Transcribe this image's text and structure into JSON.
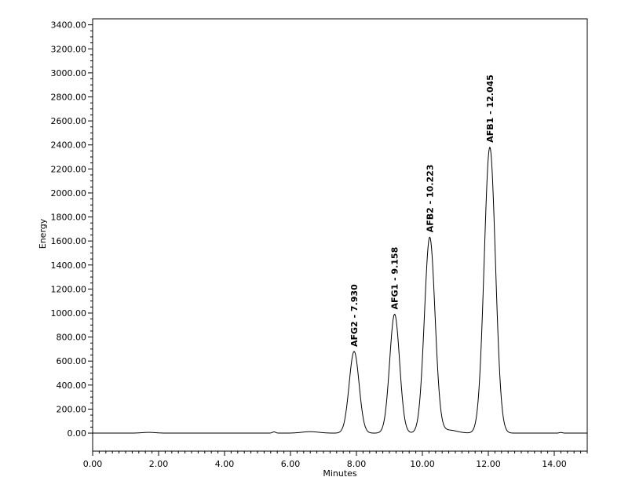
{
  "chart_data": {
    "type": "line",
    "title": "",
    "xlabel": "Minutes",
    "ylabel": "Energy",
    "xlim": [
      0,
      15
    ],
    "ylim": [
      -150,
      3450
    ],
    "x_ticks": [
      0,
      2,
      4,
      6,
      8,
      10,
      12,
      14
    ],
    "x_tick_labels": [
      "0.00",
      "2.00",
      "4.00",
      "6.00",
      "8.00",
      "10.00",
      "12.00",
      "14.00"
    ],
    "y_ticks": [
      0,
      200,
      400,
      600,
      800,
      1000,
      1200,
      1400,
      1600,
      1800,
      2000,
      2200,
      2400,
      2600,
      2800,
      3000,
      3200,
      3400
    ],
    "y_tick_labels": [
      "0.00",
      "200.00",
      "400.00",
      "600.00",
      "800.00",
      "1000.00",
      "1200.00",
      "1400.00",
      "1600.00",
      "1800.00",
      "2000.00",
      "2200.00",
      "2400.00",
      "2600.00",
      "2800.00",
      "3000.00",
      "3200.00",
      "3400.00"
    ],
    "grid": false,
    "line_color": "#000000",
    "baseline": 0,
    "peaks": [
      {
        "label": "AFG2 - 7.930",
        "retention_time": 7.93,
        "height": 680,
        "width": 0.15
      },
      {
        "label": "AFG1 - 9.158",
        "retention_time": 9.158,
        "height": 990,
        "width": 0.15
      },
      {
        "label": "AFB2 - 10.223",
        "retention_time": 10.223,
        "height": 1630,
        "width": 0.16
      },
      {
        "label": "AFB1 - 12.045",
        "retention_time": 12.045,
        "height": 2380,
        "width": 0.17
      }
    ],
    "minor_bumps": [
      {
        "x": 1.7,
        "height": 6,
        "width": 0.2
      },
      {
        "x": 5.5,
        "height": 10,
        "width": 0.05
      },
      {
        "x": 6.6,
        "height": 12,
        "width": 0.25
      },
      {
        "x": 10.8,
        "height": 25,
        "width": 0.25
      },
      {
        "x": 14.2,
        "height": 5,
        "width": 0.05
      }
    ]
  }
}
